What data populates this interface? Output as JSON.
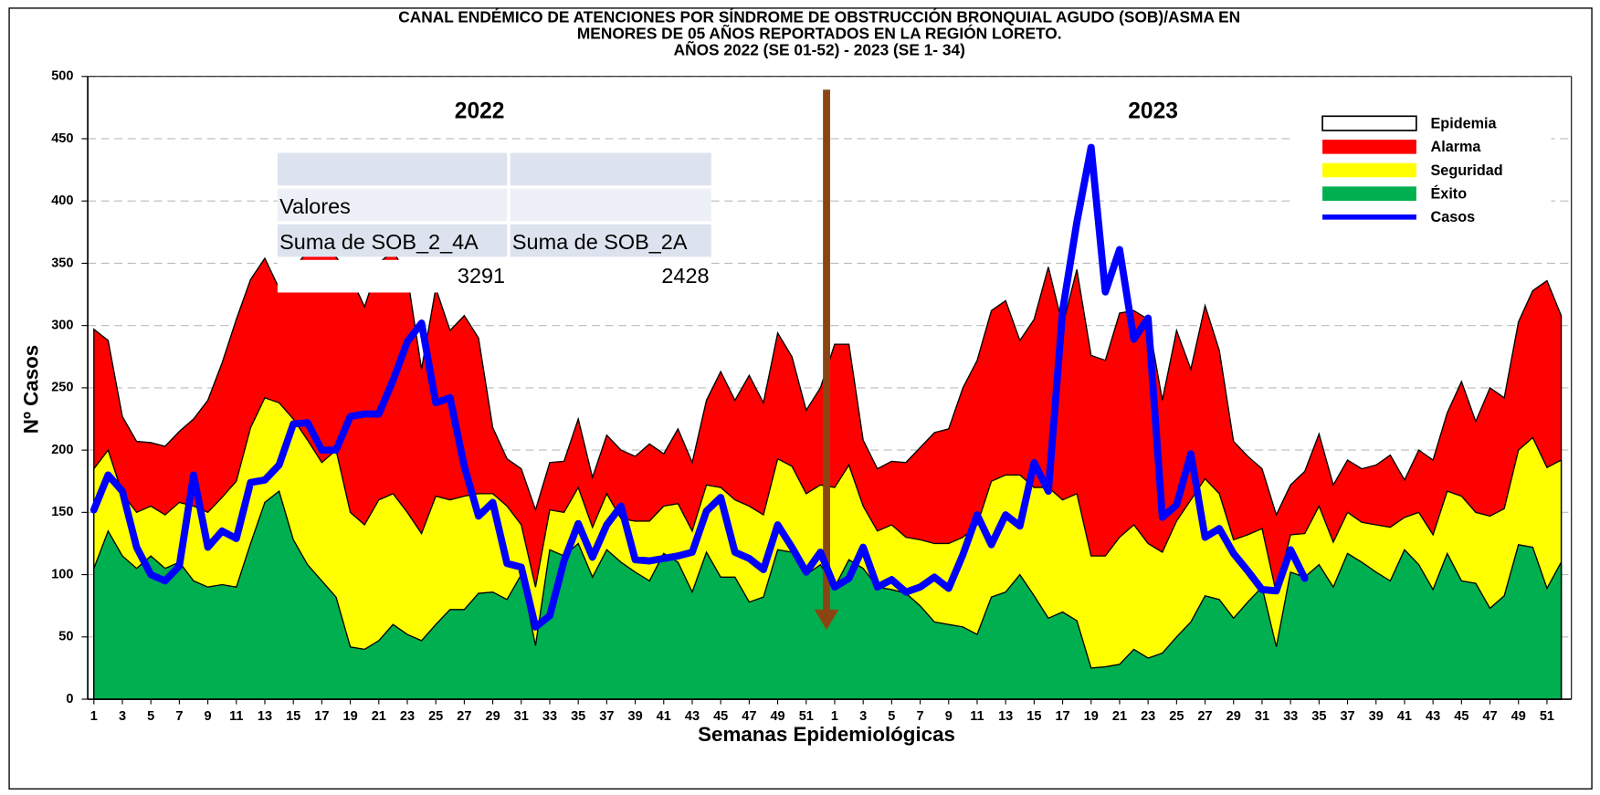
{
  "chart_data": {
    "type": "area",
    "title": [
      "CANAL ENDÉMICO DE ATENCIONES POR SÍNDROME DE OBSTRUCCIÓN BRONQUIAL AGUDO (SOB)/ASMA EN",
      "MENORES DE 05 AÑOS REPORTADOS EN LA REGIÓN LORETO.",
      "AÑOS 2022  (SE 01-52) - 2023 (SE 1- 34)"
    ],
    "xlabel": "Semanas Epidemiológicas",
    "ylabel": "Nº Casos",
    "annotations": [
      "2022",
      "2023"
    ],
    "categories": [
      "1",
      null,
      "3",
      null,
      "5",
      null,
      "7",
      null,
      "9",
      null,
      "11",
      null,
      "13",
      null,
      "15",
      null,
      "17",
      null,
      "19",
      null,
      "21",
      null,
      "23",
      null,
      "25",
      null,
      "27",
      null,
      "29",
      null,
      "31",
      null,
      "33",
      null,
      "35",
      null,
      "37",
      null,
      "39",
      null,
      "41",
      null,
      "43",
      null,
      "45",
      null,
      "47",
      null,
      "49",
      null,
      "51",
      null,
      "1",
      null,
      "3",
      null,
      "5",
      null,
      "7",
      null,
      "9",
      null,
      "11",
      null,
      "13",
      null,
      "15",
      null,
      "17",
      null,
      "19",
      null,
      "21",
      null,
      "23",
      null,
      "25",
      null,
      "27",
      null,
      "29",
      null,
      "31",
      null,
      "33",
      null,
      "35",
      null,
      "37",
      null,
      "39",
      null,
      "41",
      null,
      "43",
      null,
      "45",
      null,
      "47",
      null,
      "49",
      null,
      "51",
      null
    ],
    "ylim": [
      0,
      500
    ],
    "yticks": [
      0,
      50,
      100,
      150,
      200,
      250,
      300,
      350,
      400,
      450,
      500
    ],
    "grid": true,
    "legend": "upper right",
    "series": [
      {
        "name": "Epidemia",
        "color": "#ffffff"
      },
      {
        "name": "Alarma",
        "color": "#ff0000",
        "values": [
          297,
          288,
          227,
          207,
          206,
          203,
          215,
          225,
          240,
          270,
          305,
          337,
          354,
          330,
          345,
          360,
          365,
          355,
          340,
          315,
          350,
          360,
          340,
          265,
          330,
          296,
          308,
          290,
          218,
          193,
          185,
          152,
          190,
          191,
          225,
          178,
          212,
          200,
          195,
          205,
          197,
          217,
          190,
          240,
          263,
          240,
          260,
          238,
          294,
          275,
          232,
          250,
          285,
          285,
          208,
          185,
          191,
          190,
          202,
          214,
          217,
          250,
          272,
          312,
          320,
          288,
          305,
          347,
          300,
          345,
          276,
          272,
          310,
          312,
          305,
          240,
          296,
          265,
          316,
          280,
          207,
          195,
          185,
          148,
          172,
          183,
          213,
          172,
          192,
          185,
          188,
          196,
          176,
          200,
          192,
          230,
          255,
          223,
          250,
          242,
          303,
          328,
          336,
          308
        ]
      },
      {
        "name": "Seguridad",
        "color": "#ffff00",
        "values": [
          185,
          200,
          165,
          150,
          155,
          148,
          158,
          155,
          150,
          162,
          175,
          218,
          242,
          238,
          225,
          208,
          190,
          200,
          150,
          140,
          160,
          165,
          150,
          133,
          163,
          160,
          163,
          165,
          165,
          155,
          140,
          90,
          152,
          150,
          170,
          138,
          165,
          145,
          143,
          143,
          155,
          157,
          135,
          172,
          170,
          160,
          155,
          148,
          193,
          187,
          165,
          172,
          170,
          188,
          155,
          135,
          140,
          130,
          128,
          125,
          125,
          130,
          140,
          175,
          180,
          180,
          170,
          170,
          160,
          165,
          115,
          115,
          130,
          140,
          125,
          118,
          143,
          160,
          177,
          165,
          128,
          132,
          137,
          85,
          132,
          133,
          155,
          126,
          150,
          142,
          140,
          138,
          146,
          150,
          132,
          167,
          163,
          150,
          147,
          153,
          200,
          210,
          186,
          192
        ]
      },
      {
        "name": "Éxito",
        "color": "#00b050",
        "values": [
          105,
          135,
          115,
          105,
          115,
          105,
          110,
          95,
          90,
          92,
          90,
          125,
          158,
          167,
          128,
          108,
          95,
          82,
          42,
          40,
          47,
          60,
          52,
          47,
          60,
          72,
          72,
          85,
          86,
          80,
          100,
          43,
          120,
          115,
          125,
          98,
          120,
          110,
          102,
          95,
          117,
          110,
          86,
          118,
          98,
          98,
          78,
          82,
          120,
          118,
          100,
          108,
          90,
          112,
          105,
          90,
          88,
          85,
          75,
          62,
          60,
          58,
          52,
          82,
          86,
          100,
          83,
          65,
          70,
          63,
          25,
          26,
          28,
          40,
          33,
          37,
          50,
          62,
          83,
          80,
          65,
          78,
          90,
          42,
          102,
          98,
          108,
          90,
          117,
          110,
          102,
          95,
          120,
          108,
          88,
          117,
          95,
          93,
          73,
          83,
          124,
          122,
          89,
          110
        ]
      },
      {
        "name": "Casos",
        "color": "#0000ff",
        "values": [
          152,
          180,
          167,
          122,
          100,
          95,
          107,
          180,
          122,
          135,
          129,
          174,
          176,
          188,
          221,
          222,
          200,
          200,
          227,
          229,
          229,
          256,
          287,
          302,
          238,
          242,
          187,
          147,
          158,
          109,
          106,
          58,
          67,
          111,
          141,
          114,
          140,
          155,
          112,
          111,
          113,
          115,
          118,
          151,
          162,
          118,
          113,
          104,
          140,
          122,
          102,
          118,
          90,
          97,
          122,
          90,
          96,
          86,
          90,
          98,
          89,
          116,
          148,
          124,
          148,
          139,
          190,
          167,
          312,
          383,
          443,
          327,
          361,
          289,
          306,
          146,
          156,
          197,
          130,
          137,
          117,
          103,
          88,
          87,
          120,
          97,
          null,
          null,
          null,
          null,
          null,
          null,
          null,
          null,
          null,
          null,
          null,
          null,
          null,
          null,
          null,
          null,
          null,
          null
        ]
      }
    ]
  },
  "overlay_table": {
    "rows": [
      [
        "Valores"
      ],
      [
        "Suma de SOB_2_4A",
        "Suma de SOB_2A"
      ],
      [
        3291,
        2428
      ]
    ]
  }
}
